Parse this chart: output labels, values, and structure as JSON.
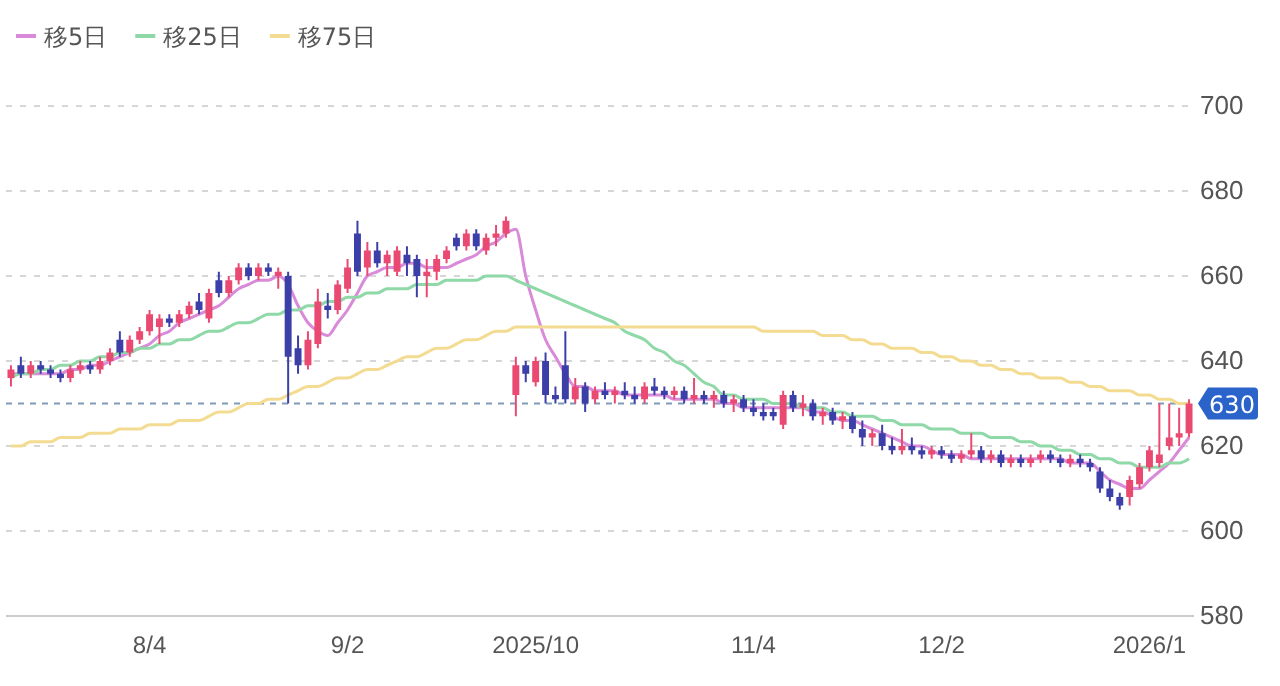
{
  "chart_data": {
    "type": "candlestick",
    "categories": [
      null,
      null,
      null,
      null,
      null,
      null,
      null,
      null,
      null,
      null,
      null,
      null,
      null,
      null,
      "8/4",
      null,
      null,
      null,
      null,
      null,
      null,
      null,
      null,
      null,
      null,
      null,
      null,
      null,
      null,
      null,
      null,
      null,
      null,
      null,
      "9/2",
      null,
      null,
      null,
      null,
      null,
      null,
      null,
      null,
      null,
      null,
      null,
      null,
      null,
      null,
      null,
      null,
      null,
      null,
      "2025/10",
      null,
      null,
      null,
      null,
      null,
      null,
      null,
      null,
      null,
      null,
      null,
      null,
      null,
      null,
      null,
      null,
      null,
      null,
      null,
      null,
      null,
      "11/4",
      null,
      null,
      null,
      null,
      null,
      null,
      null,
      null,
      null,
      null,
      null,
      null,
      null,
      null,
      null,
      null,
      null,
      null,
      "12/2",
      null,
      null,
      null,
      null,
      null,
      null,
      null,
      null,
      null,
      null,
      null,
      null,
      null,
      null,
      null,
      null,
      null,
      null,
      null,
      null,
      "2026/1",
      null,
      null,
      null,
      null
    ],
    "ohlc": [
      [
        636,
        639,
        634,
        638
      ],
      [
        639,
        641,
        636,
        637
      ],
      [
        637,
        640,
        636,
        639
      ],
      [
        639,
        640,
        637,
        638
      ],
      [
        638,
        639,
        636,
        637
      ],
      [
        637,
        638,
        635,
        636
      ],
      [
        636,
        639,
        635,
        638
      ],
      [
        638,
        640,
        637,
        639
      ],
      [
        639,
        640,
        637,
        638
      ],
      [
        638,
        641,
        637,
        640
      ],
      [
        640,
        643,
        639,
        642
      ],
      [
        645,
        647,
        641,
        642
      ],
      [
        642,
        646,
        641,
        645
      ],
      [
        645,
        648,
        644,
        647
      ],
      [
        647,
        652,
        646,
        651
      ],
      [
        648,
        651,
        644,
        650
      ],
      [
        650,
        651,
        648,
        649
      ],
      [
        649,
        652,
        648,
        651
      ],
      [
        651,
        654,
        650,
        653
      ],
      [
        654,
        656,
        651,
        652
      ],
      [
        650,
        657,
        649,
        656
      ],
      [
        659,
        661,
        655,
        656
      ],
      [
        656,
        660,
        655,
        659
      ],
      [
        659,
        663,
        658,
        662
      ],
      [
        662,
        663,
        659,
        660
      ],
      [
        660,
        663,
        659,
        662
      ],
      [
        662,
        663,
        660,
        661
      ],
      [
        660,
        662,
        657,
        661
      ],
      [
        660,
        661,
        630,
        641
      ],
      [
        643,
        646,
        637,
        639
      ],
      [
        639,
        647,
        638,
        645
      ],
      [
        644,
        657,
        643,
        654
      ],
      [
        653,
        656,
        650,
        652
      ],
      [
        652,
        659,
        651,
        658
      ],
      [
        657,
        664,
        656,
        662
      ],
      [
        670,
        673,
        660,
        661
      ],
      [
        662,
        668,
        660,
        666
      ],
      [
        666,
        668,
        662,
        663
      ],
      [
        663,
        666,
        660,
        665
      ],
      [
        661,
        667,
        660,
        666
      ],
      [
        665,
        667,
        660,
        663
      ],
      [
        664,
        665,
        655,
        660
      ],
      [
        660,
        664,
        655,
        661
      ],
      [
        661,
        665,
        659,
        664
      ],
      [
        664,
        667,
        663,
        666
      ],
      [
        669,
        670,
        666,
        667
      ],
      [
        667,
        671,
        666,
        670
      ],
      [
        670,
        671,
        666,
        667
      ],
      [
        666,
        670,
        665,
        669
      ],
      [
        669,
        672,
        667,
        670
      ],
      [
        670,
        674,
        669,
        673
      ],
      [
        632,
        641,
        627,
        639
      ],
      [
        639,
        640,
        635,
        637
      ],
      [
        635,
        641,
        634,
        640
      ],
      [
        640,
        642,
        630,
        632
      ],
      [
        632,
        634,
        630,
        631
      ],
      [
        639,
        647,
        630,
        631
      ],
      [
        631,
        636,
        630,
        634
      ],
      [
        634,
        635,
        628,
        630
      ],
      [
        631,
        634,
        630,
        633
      ],
      [
        633,
        635,
        631,
        632
      ],
      [
        632,
        634,
        630,
        633
      ],
      [
        633,
        635,
        631,
        632
      ],
      [
        632,
        634,
        630,
        631
      ],
      [
        631,
        635,
        630,
        634
      ],
      [
        634,
        636,
        632,
        633
      ],
      [
        633,
        634,
        631,
        632
      ],
      [
        632,
        634,
        631,
        633
      ],
      [
        633,
        634,
        630,
        631
      ],
      [
        631,
        636,
        630,
        632
      ],
      [
        632,
        633,
        630,
        631
      ],
      [
        631,
        633,
        629,
        632
      ],
      [
        632,
        633,
        629,
        630
      ],
      [
        630,
        632,
        628,
        631
      ],
      [
        631,
        632,
        628,
        629
      ],
      [
        629,
        631,
        627,
        628
      ],
      [
        628,
        630,
        626,
        627
      ],
      [
        628,
        629,
        626,
        627
      ],
      [
        625,
        633,
        624,
        632
      ],
      [
        632,
        633,
        628,
        629
      ],
      [
        629,
        632,
        627,
        630
      ],
      [
        630,
        631,
        626,
        627
      ],
      [
        627,
        629,
        625,
        628
      ],
      [
        628,
        629,
        625,
        626
      ],
      [
        626,
        628,
        624,
        627
      ],
      [
        627,
        628,
        623,
        624
      ],
      [
        624,
        626,
        620,
        622
      ],
      [
        622,
        624,
        620,
        623
      ],
      [
        623,
        625,
        619,
        620
      ],
      [
        620,
        622,
        618,
        619
      ],
      [
        619,
        624,
        618,
        620
      ],
      [
        620,
        622,
        618,
        619
      ],
      [
        619,
        620,
        617,
        618
      ],
      [
        618,
        620,
        617,
        619
      ],
      [
        619,
        620,
        617,
        618
      ],
      [
        618,
        619,
        616,
        617
      ],
      [
        617,
        619,
        616,
        618
      ],
      [
        618,
        623,
        617,
        619
      ],
      [
        619,
        620,
        616,
        617
      ],
      [
        617,
        619,
        616,
        618
      ],
      [
        618,
        619,
        615,
        616
      ],
      [
        616,
        618,
        615,
        617
      ],
      [
        617,
        618,
        615,
        616
      ],
      [
        616,
        618,
        615,
        617
      ],
      [
        617,
        619,
        616,
        618
      ],
      [
        618,
        619,
        616,
        617
      ],
      [
        617,
        618,
        615,
        616
      ],
      [
        616,
        618,
        615,
        617
      ],
      [
        617,
        618,
        615,
        616
      ],
      [
        616,
        617,
        614,
        615
      ],
      [
        614,
        615,
        609,
        610
      ],
      [
        610,
        612,
        607,
        608
      ],
      [
        608,
        609,
        605,
        606
      ],
      [
        608,
        613,
        606,
        612
      ],
      [
        611,
        616,
        610,
        615
      ],
      [
        615,
        620,
        614,
        619
      ],
      [
        616,
        630,
        615,
        618
      ],
      [
        620,
        630,
        619,
        622
      ],
      [
        622,
        629,
        620,
        623
      ],
      [
        623,
        631,
        622,
        630
      ]
    ],
    "colors": [
      "#ea4a72",
      "#3d3fa8",
      "#ea4a72",
      "#3d3fa8",
      "#3d3fa8",
      "#3d3fa8",
      "#ea4a72",
      "#ea4a72",
      "#3d3fa8",
      "#ea4a72",
      "#ea4a72",
      "#3d3fa8",
      "#ea4a72",
      "#ea4a72",
      "#ea4a72",
      "#ea4a72",
      "#3d3fa8",
      "#ea4a72",
      "#ea4a72",
      "#3d3fa8",
      "#ea4a72",
      "#3d3fa8",
      "#ea4a72",
      "#ea4a72",
      "#3d3fa8",
      "#ea4a72",
      "#3d3fa8",
      "#ea4a72",
      "#3d3fa8",
      "#3d3fa8",
      "#ea4a72",
      "#ea4a72",
      "#3d3fa8",
      "#ea4a72",
      "#ea4a72",
      "#3d3fa8",
      "#ea4a72",
      "#3d3fa8",
      "#ea4a72",
      "#ea4a72",
      "#3d3fa8",
      "#3d3fa8",
      "#ea4a72",
      "#ea4a72",
      "#ea4a72",
      "#3d3fa8",
      "#ea4a72",
      "#3d3fa8",
      "#ea4a72",
      "#ea4a72",
      "#ea4a72",
      "#ea4a72",
      "#3d3fa8",
      "#ea4a72",
      "#3d3fa8",
      "#3d3fa8",
      "#3d3fa8",
      "#ea4a72",
      "#3d3fa8",
      "#ea4a72",
      "#3d3fa8",
      "#ea4a72",
      "#3d3fa8",
      "#3d3fa8",
      "#ea4a72",
      "#3d3fa8",
      "#3d3fa8",
      "#ea4a72",
      "#3d3fa8",
      "#ea4a72",
      "#3d3fa8",
      "#ea4a72",
      "#3d3fa8",
      "#ea4a72",
      "#3d3fa8",
      "#3d3fa8",
      "#3d3fa8",
      "#3d3fa8",
      "#ea4a72",
      "#3d3fa8",
      "#ea4a72",
      "#3d3fa8",
      "#ea4a72",
      "#3d3fa8",
      "#ea4a72",
      "#3d3fa8",
      "#3d3fa8",
      "#ea4a72",
      "#3d3fa8",
      "#3d3fa8",
      "#ea4a72",
      "#3d3fa8",
      "#3d3fa8",
      "#ea4a72",
      "#3d3fa8",
      "#3d3fa8",
      "#ea4a72",
      "#ea4a72",
      "#3d3fa8",
      "#ea4a72",
      "#3d3fa8",
      "#ea4a72",
      "#3d3fa8",
      "#ea4a72",
      "#ea4a72",
      "#3d3fa8",
      "#3d3fa8",
      "#ea4a72",
      "#3d3fa8",
      "#3d3fa8",
      "#3d3fa8",
      "#3d3fa8",
      "#3d3fa8",
      "#ea4a72",
      "#ea4a72",
      "#ea4a72",
      "#ea4a72",
      "#ea4a72",
      "#ea4a72",
      "#ea4a72"
    ],
    "series": [
      {
        "name": "移5日",
        "type": "line",
        "color": "#d98ad8",
        "values": [
          637,
          637,
          637,
          637,
          637,
          637,
          638,
          638,
          639,
          639,
          640,
          641,
          642,
          643,
          644,
          646,
          647,
          649,
          650,
          651,
          652,
          653,
          655,
          657,
          658,
          659,
          659,
          660,
          658,
          653,
          649,
          647,
          646,
          649,
          652,
          656,
          660,
          661,
          662,
          662,
          663,
          663,
          662,
          662,
          662,
          663,
          664,
          665,
          667,
          668,
          670,
          671,
          660,
          652,
          645,
          641,
          637,
          634,
          634,
          633,
          633,
          633,
          632,
          632,
          632,
          632,
          632,
          631,
          631,
          631,
          631,
          631,
          630,
          630,
          629,
          629,
          629,
          629,
          629,
          629,
          629,
          628,
          628,
          627,
          626,
          626,
          625,
          624,
          623,
          622,
          621,
          620,
          620,
          619,
          618,
          618,
          618,
          617,
          617,
          617,
          617,
          617,
          617,
          617,
          617,
          617,
          617,
          616,
          616,
          616,
          614,
          612,
          611,
          610,
          610,
          612,
          614,
          616,
          619,
          622
        ]
      },
      {
        "name": "移25日",
        "type": "line",
        "color": "#8fd8a8",
        "values": [
          636,
          637,
          637,
          638,
          638,
          639,
          639,
          640,
          640,
          641,
          641,
          642,
          642,
          643,
          643,
          644,
          644,
          645,
          645,
          646,
          647,
          647,
          648,
          649,
          649,
          650,
          651,
          651,
          652,
          652,
          653,
          653,
          654,
          654,
          655,
          655,
          656,
          656,
          657,
          657,
          657,
          658,
          658,
          658,
          659,
          659,
          659,
          659,
          660,
          660,
          660,
          659,
          658,
          657,
          656,
          655,
          654,
          653,
          652,
          651,
          650,
          649,
          647,
          646,
          645,
          643,
          642,
          640,
          639,
          637,
          635,
          634,
          632,
          632,
          631,
          631,
          631,
          630,
          630,
          630,
          629,
          629,
          629,
          628,
          628,
          627,
          627,
          627,
          626,
          626,
          625,
          625,
          625,
          624,
          624,
          624,
          623,
          623,
          623,
          622,
          622,
          622,
          621,
          621,
          620,
          620,
          619,
          619,
          618,
          618,
          617,
          617,
          616,
          616,
          615,
          615,
          615,
          616,
          616,
          617
        ]
      },
      {
        "name": "移75日",
        "type": "line",
        "color": "#f3dc92",
        "values": [
          620,
          620,
          621,
          621,
          621,
          622,
          622,
          622,
          623,
          623,
          623,
          624,
          624,
          624,
          625,
          625,
          625,
          626,
          626,
          626,
          627,
          628,
          628,
          629,
          630,
          630,
          631,
          631,
          632,
          633,
          634,
          634,
          635,
          636,
          636,
          637,
          638,
          638,
          639,
          640,
          641,
          641,
          642,
          643,
          643,
          644,
          645,
          645,
          646,
          647,
          647,
          648,
          648,
          648,
          648,
          648,
          648,
          648,
          648,
          648,
          648,
          648,
          648,
          648,
          648,
          648,
          648,
          648,
          648,
          648,
          648,
          648,
          648,
          648,
          648,
          648,
          647,
          647,
          647,
          647,
          647,
          647,
          646,
          646,
          646,
          645,
          645,
          644,
          644,
          643,
          643,
          643,
          642,
          642,
          641,
          641,
          640,
          640,
          639,
          639,
          638,
          638,
          637,
          637,
          636,
          636,
          636,
          635,
          635,
          634,
          634,
          633,
          633,
          633,
          632,
          632,
          631,
          631,
          630,
          630
        ]
      }
    ],
    "ylim": [
      580,
      700
    ],
    "yticks": [
      580,
      600,
      620,
      640,
      660,
      680,
      700
    ],
    "grid": "y",
    "legend": "top left",
    "ref_lines": [
      {
        "axis": "y",
        "value": 630,
        "label": "630",
        "color": "#7f9bb8",
        "line_style": "dashed"
      }
    ]
  }
}
